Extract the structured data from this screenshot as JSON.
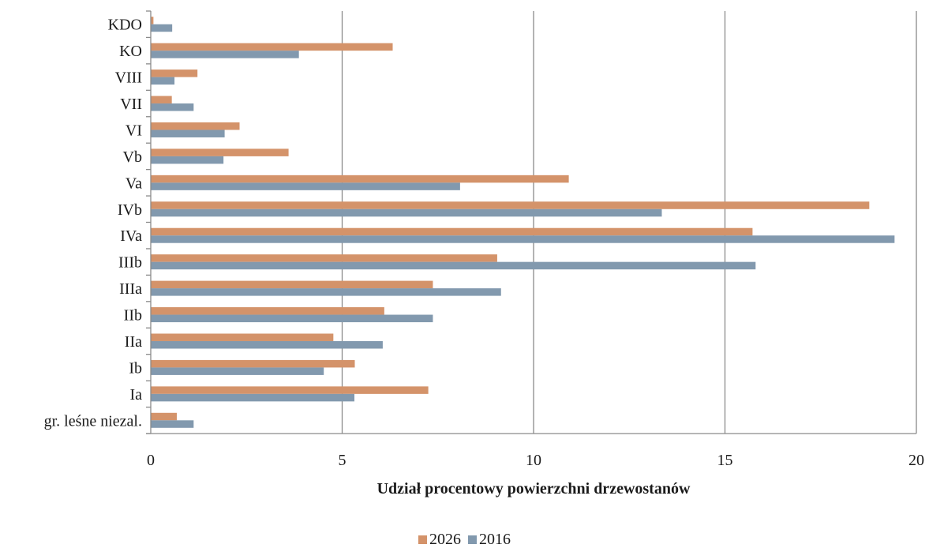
{
  "chart_data": {
    "type": "bar",
    "orientation": "horizontal",
    "categories": [
      "KDO",
      "KO",
      "VIII",
      "VII",
      "VI",
      "Vb",
      "Va",
      "IVb",
      "IVa",
      "IIIb",
      "IIIa",
      "IIb",
      "IIa",
      "Ib",
      "Ia",
      "gr. leśne niezal."
    ],
    "series": [
      {
        "name": "2026",
        "color": "#d4936a",
        "values": [
          0.07,
          6.32,
          1.22,
          0.55,
          2.32,
          3.6,
          10.92,
          18.77,
          15.72,
          9.05,
          7.37,
          6.1,
          4.77,
          5.33,
          7.25,
          0.68
        ]
      },
      {
        "name": "2016",
        "color": "#8299ae",
        "values": [
          0.56,
          3.87,
          0.62,
          1.12,
          1.93,
          1.9,
          8.08,
          13.35,
          19.43,
          15.8,
          9.15,
          7.37,
          6.06,
          4.52,
          5.32,
          1.12
        ]
      }
    ],
    "xlim": [
      0,
      20
    ],
    "xticks": [
      0,
      5,
      10,
      15,
      20
    ],
    "xtick_labels": [
      "0",
      "5",
      "10",
      "15",
      "20"
    ],
    "xlabel": "Udział procentowy powierzchni drzewostanów",
    "ylabel": "",
    "title": "",
    "grid": "vertical",
    "legend_position": "bottom"
  }
}
